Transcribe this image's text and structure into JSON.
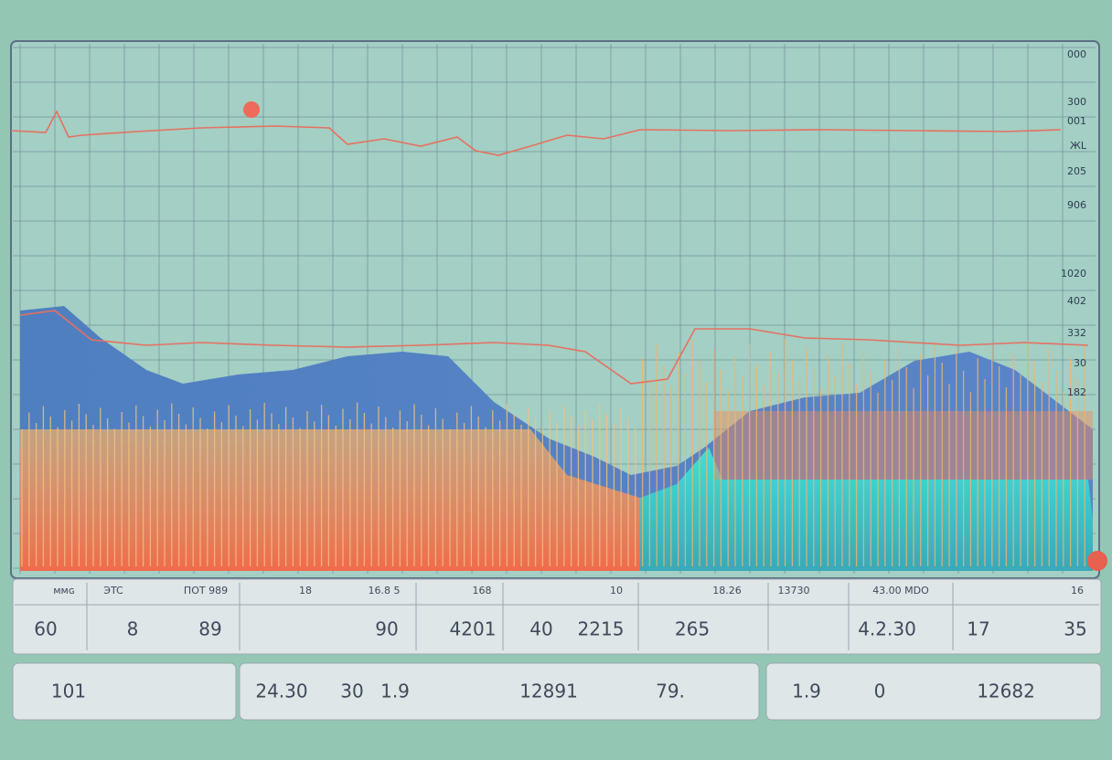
{
  "axis_labels": [
    "000",
    "300",
    "001",
    "ЖL",
    "205",
    "906",
    "1020",
    "402",
    "332",
    "30",
    "182"
  ],
  "toolbar": {
    "labels": [
      "ᴍᴍɢ",
      "ЭTC",
      "ΠΟΤ 989",
      "18",
      "16.8 5",
      "168",
      "10",
      "18.26",
      "13730",
      "43.00 MDO",
      "16"
    ],
    "values": [
      "60",
      "8",
      "89",
      "90",
      "4201",
      "40",
      "2215",
      "265",
      "4.2.30",
      "17",
      "35"
    ]
  },
  "footer": {
    "items": [
      "101",
      "24.30",
      "30",
      "1.9",
      "12891",
      "79.",
      "1.9",
      "0",
      "12682"
    ]
  }
}
